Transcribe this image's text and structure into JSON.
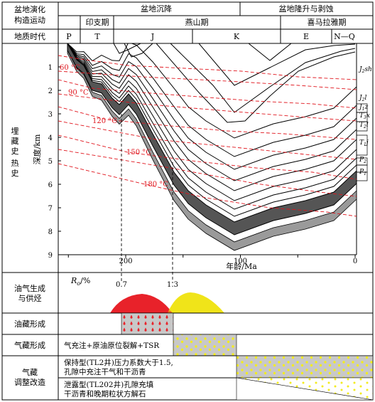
{
  "header": {
    "evolution_label": "盆地演化\n构造运动",
    "evolution_subsidence": "盆地沉降",
    "evolution_uplift": "盆地隆升与剥蚀",
    "orogeny_indosinian": "印支期",
    "orogeny_yanshan": "燕山期",
    "orogeny_himalayan": "喜马拉雅期",
    "age_label": "地质时代",
    "periods": [
      "P",
      "T",
      "J",
      "K",
      "E",
      "N—Q"
    ]
  },
  "burial": {
    "row_label": "埋藏史 热史",
    "y_axis_label": "深度/km",
    "x_axis_label": "年龄/Ma",
    "y_ticks": [
      "1",
      "2",
      "3",
      "4",
      "5",
      "6",
      "7",
      "8",
      "9"
    ],
    "x_ticks": [
      "200",
      "100",
      "0"
    ],
    "isotherms": [
      "60 °C",
      "90 °C",
      "120 °C",
      "150 °C",
      "180 °C"
    ],
    "formations": [
      "J2sh",
      "J2l",
      "J1z",
      "T3x",
      "T2l",
      "T1j",
      "P2",
      "P1"
    ],
    "formation_labels": [
      {
        "main": "J",
        "sub": "2",
        "tail": "sh"
      },
      {
        "main": "J",
        "sub": "2",
        "tail": "l"
      },
      {
        "main": "J",
        "sub": "1",
        "tail": "z"
      },
      {
        "main": "T",
        "sub": "3",
        "tail": "x"
      },
      {
        "main": "T",
        "sub": "2",
        "tail": "l"
      },
      {
        "main": "T",
        "sub": "1",
        "tail": "j"
      },
      {
        "main": "P",
        "sub": "2",
        "tail": ""
      },
      {
        "main": "P",
        "sub": "1",
        "tail": ""
      }
    ]
  },
  "generation": {
    "row_label": "油气生成\n与供烃",
    "ro_label": "R",
    "ro_sub": "o",
    "ro_unit": "/%",
    "ro_values": [
      "0.7",
      "1.3"
    ]
  },
  "oil_reservoir": {
    "row_label": "油藏形成"
  },
  "gas_reservoir": {
    "row_label": "气藏形成",
    "description": "气充注+原油原位裂解+TSR"
  },
  "adjustment": {
    "row_label": "气藏\n调整改造",
    "preserved": "保持型(TL2井)压力系数大于1.5,\n孔隙中充注干气和干沥青",
    "leaked": "泄露型(TL202井)孔隙充填\n干沥青和晚期粒状方解石"
  },
  "colors": {
    "oil": "#e8222a",
    "gas": "#f0e419",
    "isotherm": "#e0141c",
    "reservoir_fill": "#c8c8c8",
    "source_layer": "#555555"
  }
}
